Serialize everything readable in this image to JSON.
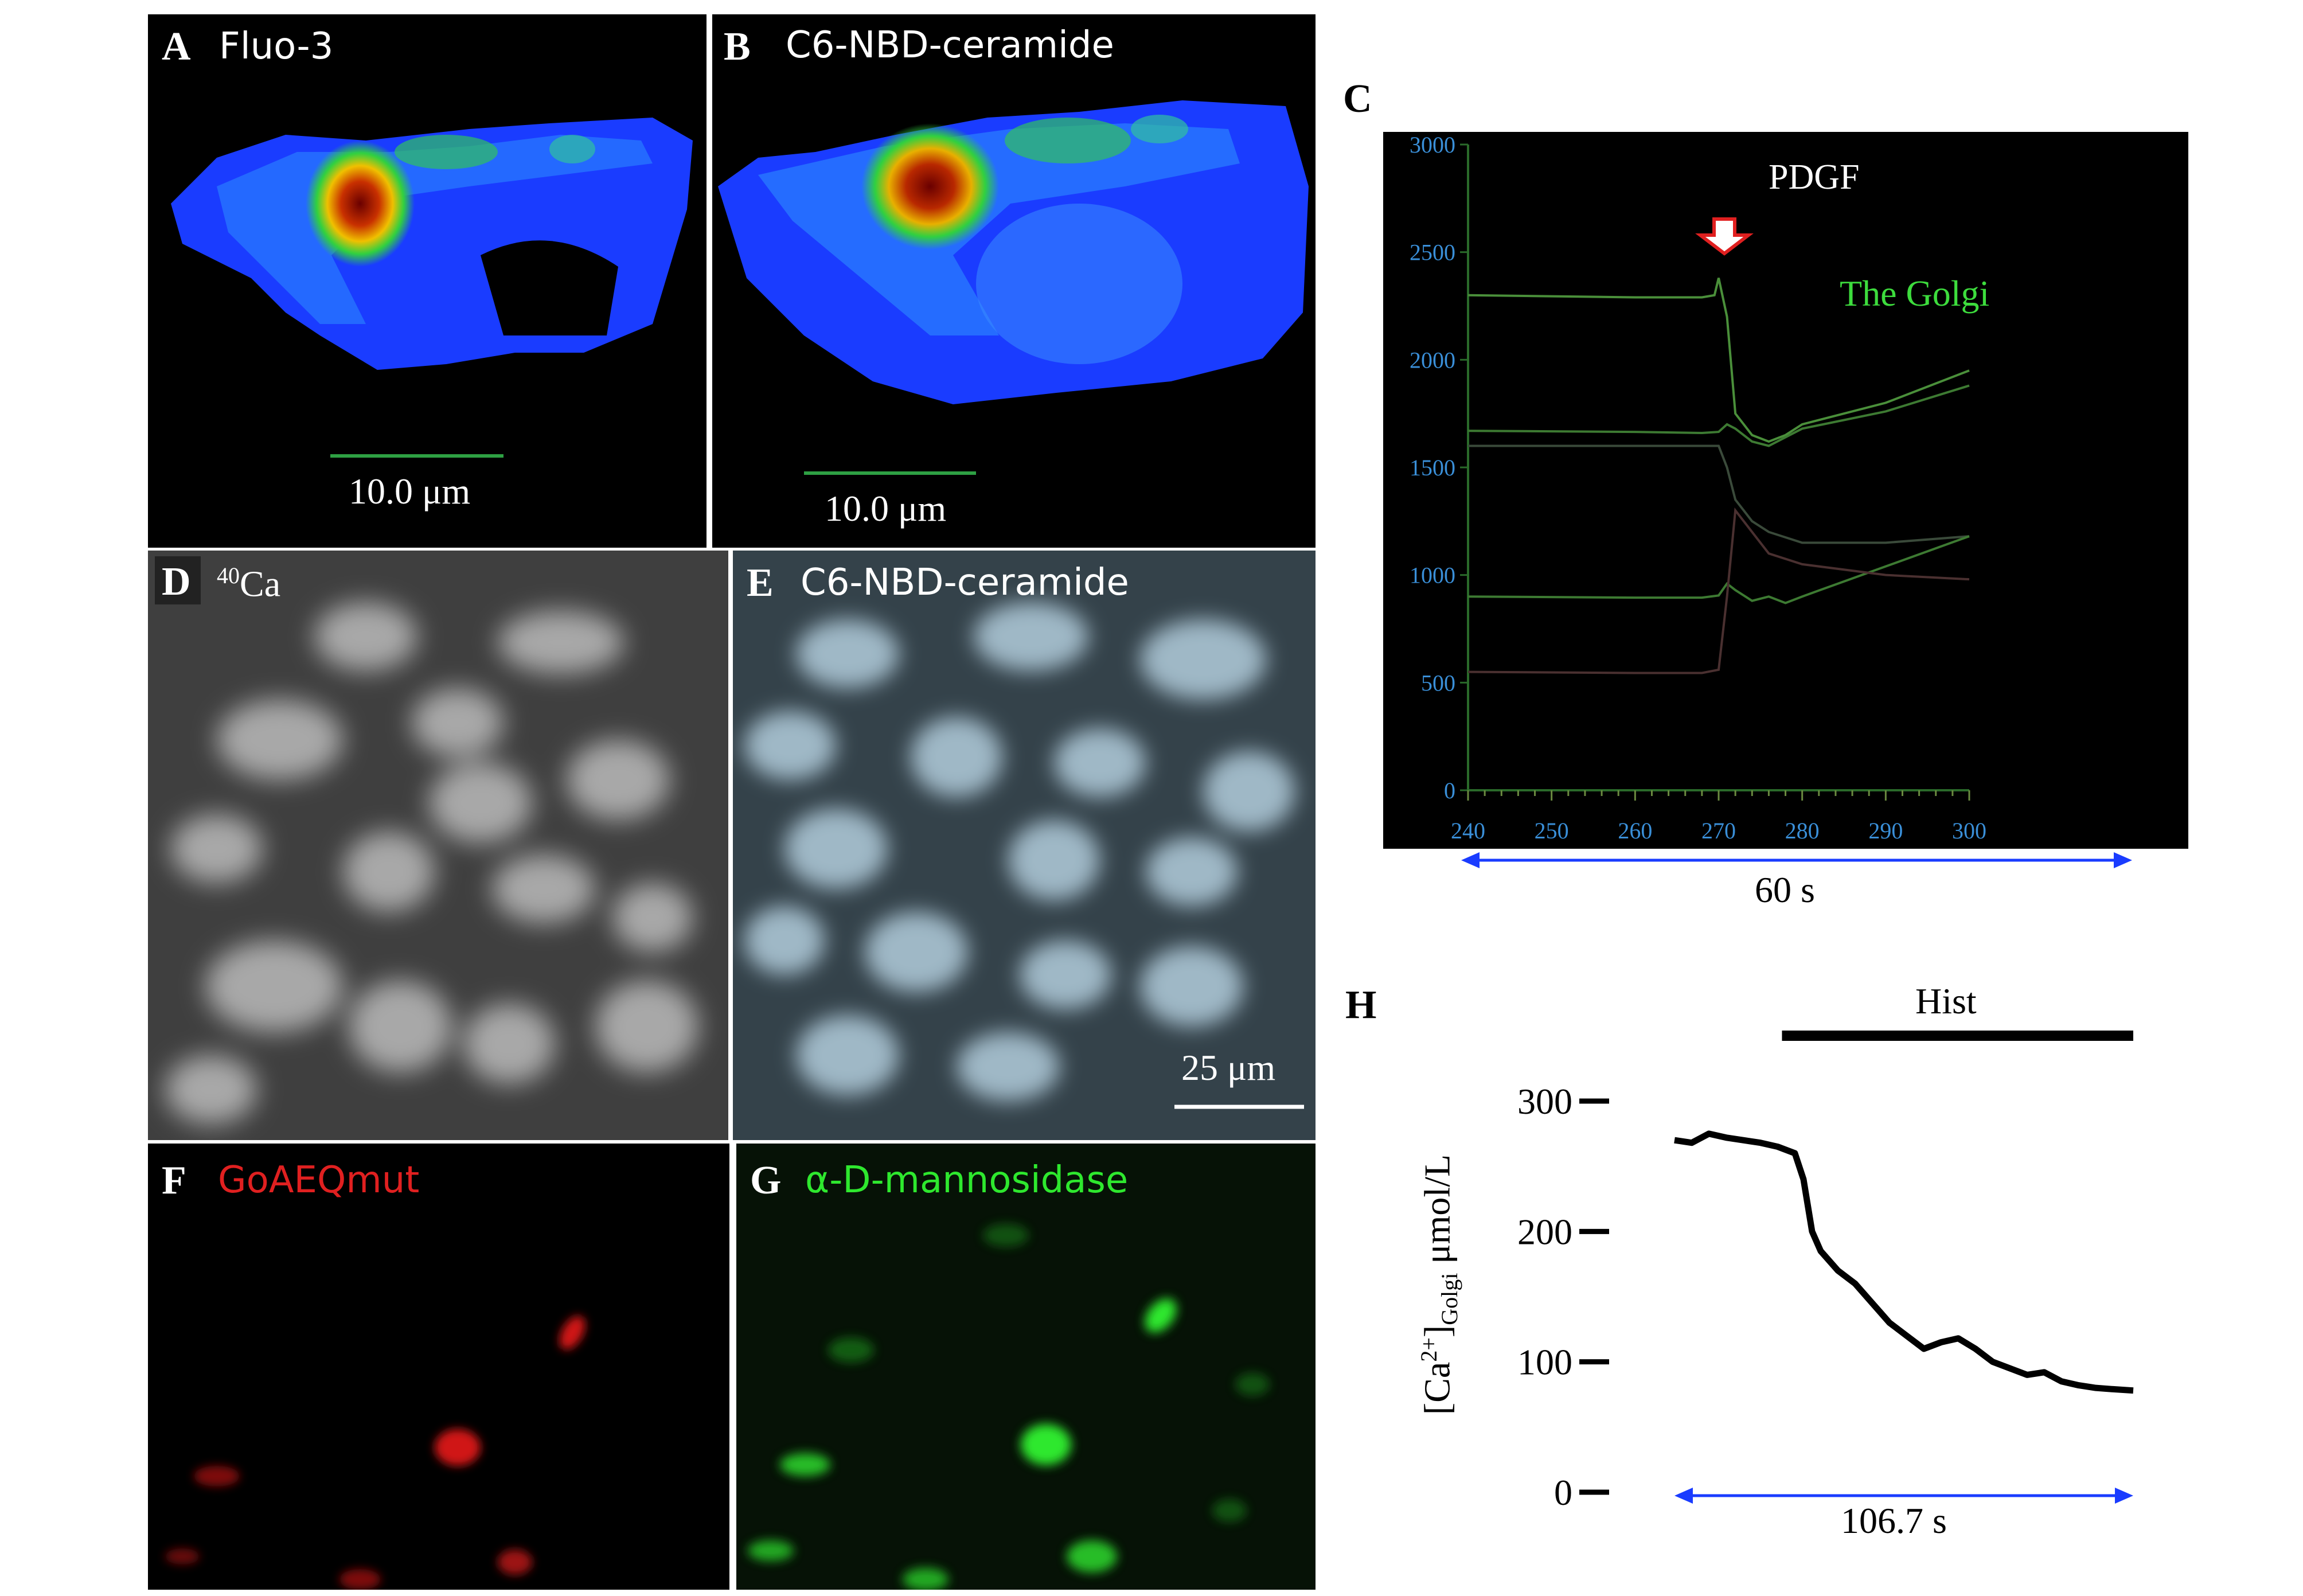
{
  "panels": {
    "A": {
      "letter": "A",
      "title": "Fluo-3",
      "scale": "10.0 μm"
    },
    "B": {
      "letter": "B",
      "title": "C6-NBD-ceramide",
      "scale": "10.0 μm"
    },
    "C": {
      "letter": "C",
      "annotation": "PDGF",
      "series_label": "The Golgi",
      "duration": "60 s"
    },
    "D": {
      "letter": "D",
      "title_sup": "40",
      "title": "Ca"
    },
    "E": {
      "letter": "E",
      "title": "C6-NBD-ceramide",
      "scale": "25 μm"
    },
    "F": {
      "letter": "F",
      "title": "GoAEQmut"
    },
    "G": {
      "letter": "G",
      "title": "α-D-mannosidase"
    },
    "H": {
      "letter": "H",
      "bar_label": "Hist",
      "duration": "106.7 s",
      "ylabel_pre": "[Ca",
      "ylabel_sup": "2+",
      "ylabel_mid": "]",
      "ylabel_sub": "Golgi",
      "ylabel_post": " μmol/L"
    }
  },
  "chart_data": [
    {
      "panel": "C",
      "type": "line",
      "x_ticks": [
        "240",
        "250",
        "260",
        "270",
        "280",
        "290",
        "300"
      ],
      "y_ticks": [
        "0",
        "500",
        "1000",
        "1500",
        "2000",
        "2500",
        "3000"
      ],
      "xlim": [
        240,
        300
      ],
      "ylim": [
        0,
        3000
      ],
      "event_x": 270,
      "series": [
        {
          "color": "#4a8f3a",
          "x": [
            240,
            260,
            268,
            269.5,
            270,
            271,
            272,
            274,
            276,
            278,
            280,
            290,
            300
          ],
          "y": [
            2300,
            2290,
            2290,
            2300,
            2380,
            2200,
            1750,
            1650,
            1620,
            1650,
            1700,
            1800,
            1950
          ]
        },
        {
          "color": "#3d7a32",
          "x": [
            240,
            260,
            268,
            270,
            271,
            272,
            274,
            276,
            278,
            280,
            290,
            300
          ],
          "y": [
            1670,
            1665,
            1660,
            1665,
            1700,
            1680,
            1620,
            1600,
            1640,
            1680,
            1760,
            1880
          ]
        },
        {
          "color": "#3a4a3a",
          "x": [
            240,
            268,
            270,
            271,
            272,
            274,
            276,
            280,
            290,
            300
          ],
          "y": [
            1600,
            1600,
            1600,
            1500,
            1350,
            1250,
            1200,
            1150,
            1150,
            1180
          ]
        },
        {
          "color": "#3d7a32",
          "x": [
            240,
            260,
            268,
            270,
            271,
            272,
            274,
            276,
            278,
            280,
            290,
            300
          ],
          "y": [
            900,
            895,
            895,
            905,
            960,
            930,
            880,
            900,
            870,
            900,
            1040,
            1180
          ]
        },
        {
          "color": "#4a3030",
          "x": [
            240,
            260,
            268,
            270,
            271,
            272,
            274,
            276,
            280,
            290,
            300
          ],
          "y": [
            550,
            545,
            545,
            560,
            900,
            1300,
            1200,
            1100,
            1050,
            1000,
            980
          ]
        }
      ]
    },
    {
      "panel": "H",
      "type": "line",
      "y_ticks": [
        "300",
        "200",
        "100",
        "0"
      ],
      "ylim": [
        0,
        300
      ],
      "xlim": [
        0,
        106.7
      ],
      "x": [
        0,
        4,
        8,
        12,
        16,
        20,
        24,
        28,
        30,
        32,
        34,
        38,
        42,
        46,
        50,
        54,
        58,
        62,
        66,
        70,
        74,
        78,
        82,
        86,
        90,
        94,
        98,
        102,
        106.7
      ],
      "y": [
        270,
        268,
        275,
        272,
        270,
        268,
        265,
        260,
        240,
        200,
        185,
        170,
        160,
        145,
        130,
        120,
        110,
        115,
        118,
        110,
        100,
        95,
        90,
        92,
        85,
        82,
        80,
        79,
        78
      ],
      "hist_start": 25,
      "hist_end": 106.7
    }
  ]
}
